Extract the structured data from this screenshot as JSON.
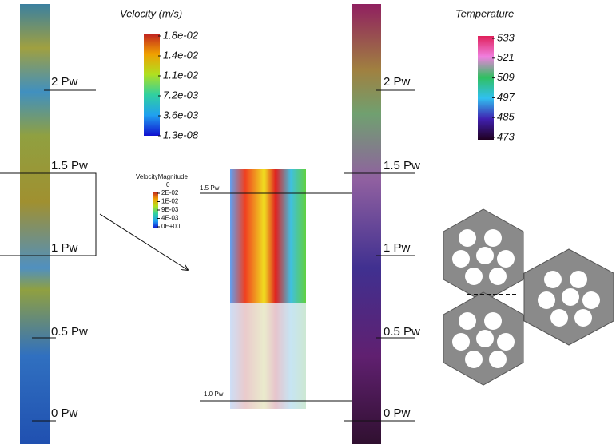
{
  "left_panel": {
    "legend": {
      "title": "Velocity (m/s)",
      "ticks": [
        "1.8e-02",
        "1.4e-02",
        "1.1e-02",
        "7.2e-03",
        "3.6e-03",
        "1.3e-08"
      ]
    },
    "positions": [
      "2 Pw",
      "1.5 Pw",
      "1 Pw",
      "0.5 Pw",
      "0 Pw"
    ]
  },
  "inset": {
    "legend": {
      "title": "VelocityMagnitude",
      "subtitle": "0",
      "ticks": [
        "2E-02",
        "1E-02",
        "9E-03",
        "4E-03",
        "0E+00"
      ]
    },
    "top_label": "1.5 Pw",
    "bottom_label": "1.0 Pw"
  },
  "right_panel": {
    "legend": {
      "title": "Temperature",
      "ticks": [
        "533",
        "521",
        "509",
        "497",
        "485",
        "473"
      ]
    },
    "positions": [
      "2 Pw",
      "1.5 Pw",
      "1 Pw",
      "0.5 Pw",
      "0 Pw"
    ]
  }
}
